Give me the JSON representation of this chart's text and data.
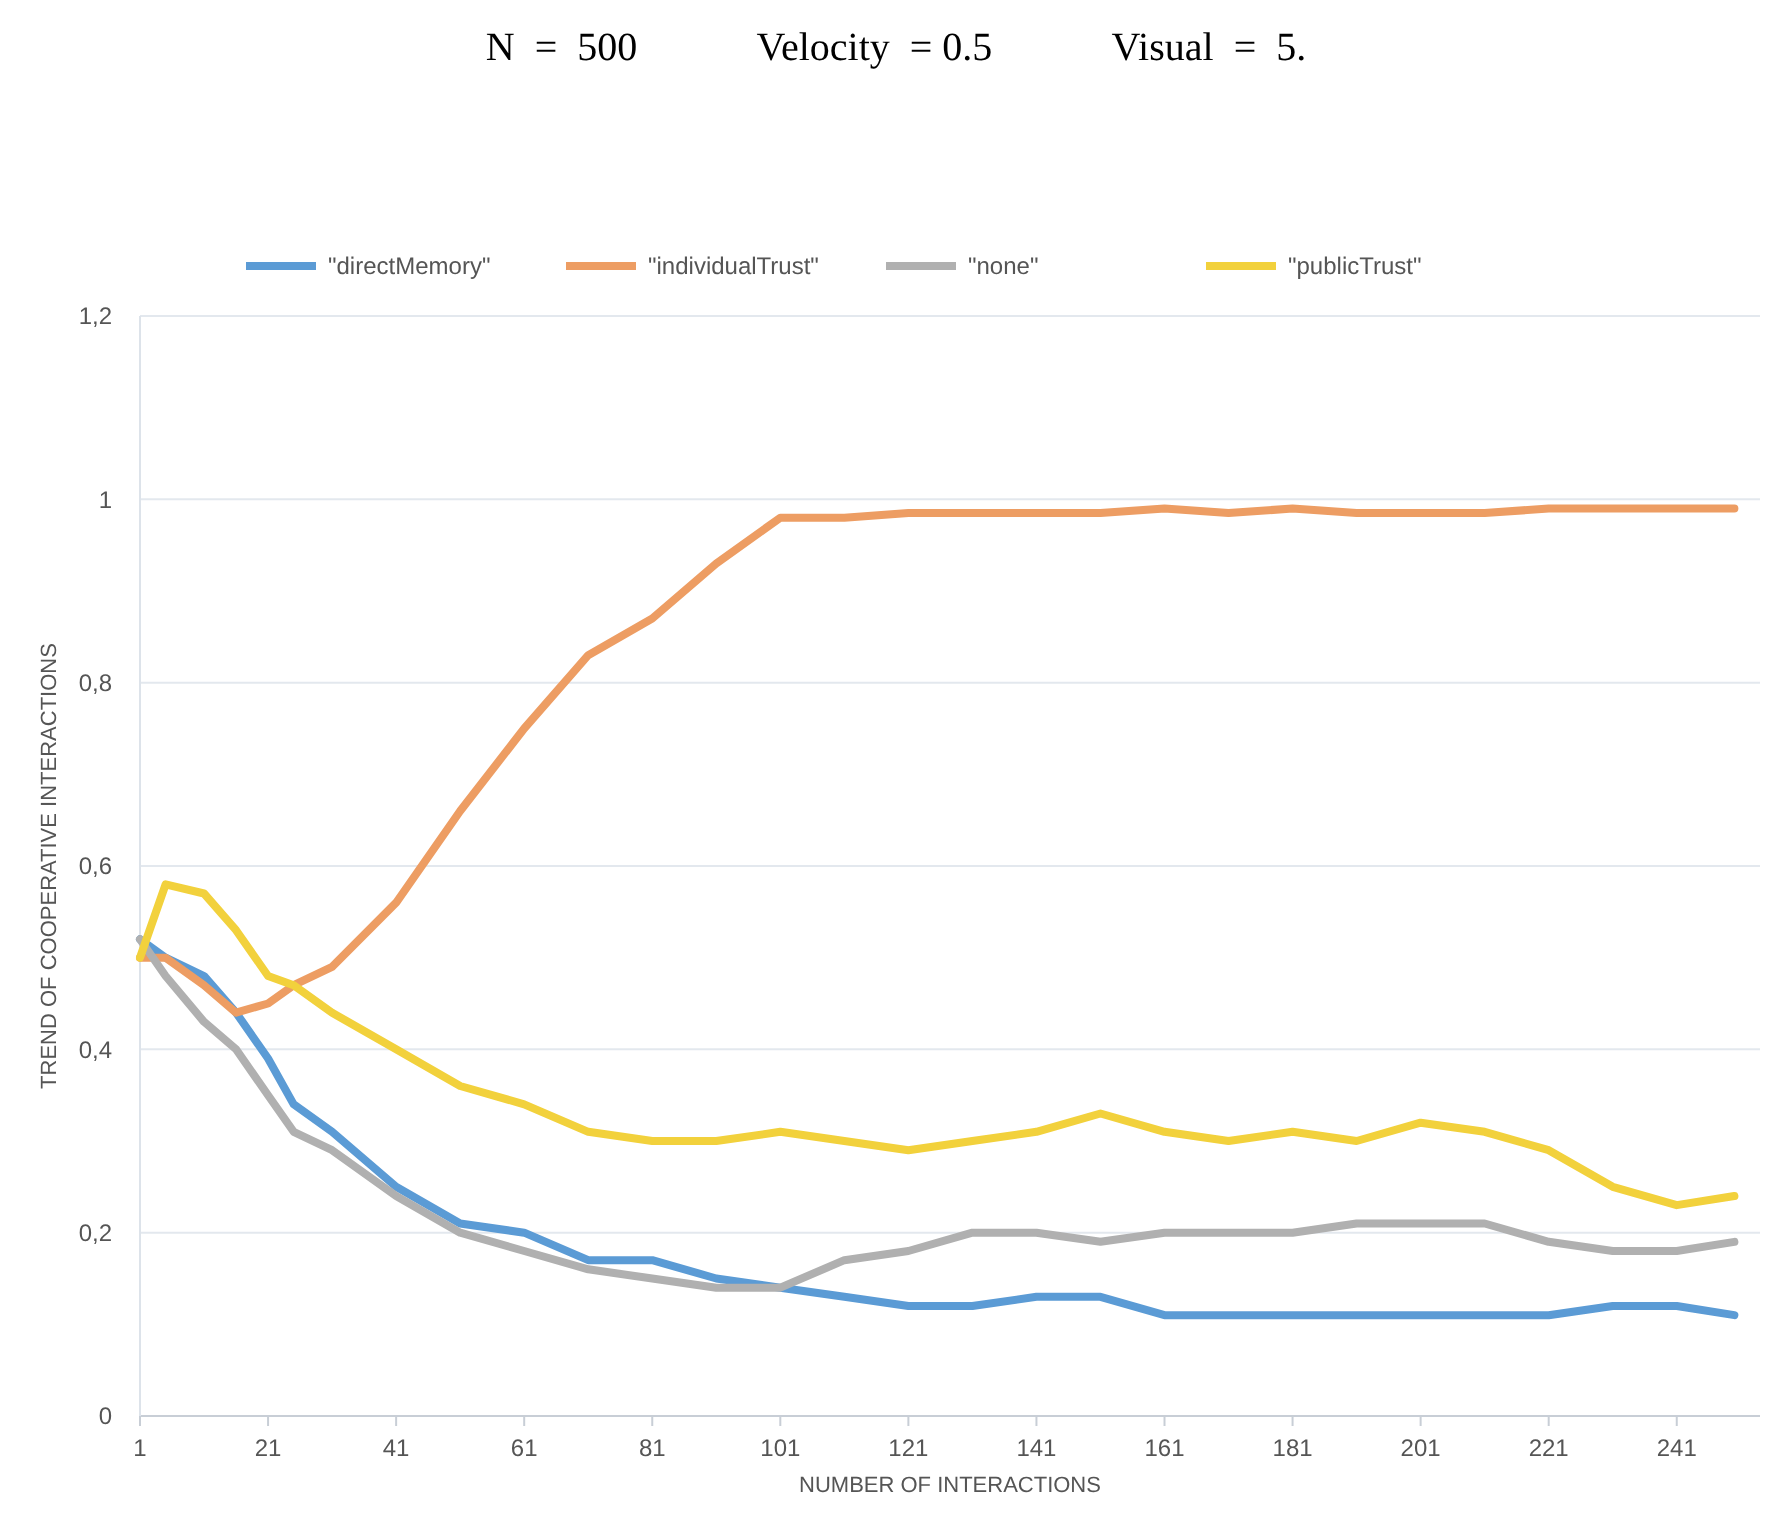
{
  "chart_data": {
    "type": "line",
    "title": "N  =  500            Velocity  = 0.5            Visual  =  5.",
    "xlabel": "NUMBER OF INTERACTIONS",
    "ylabel": "TREND OF COOPERATIVE INTERACTIONS",
    "x": [
      1,
      5,
      11,
      16,
      21,
      25,
      31,
      41,
      51,
      61,
      71,
      81,
      91,
      101,
      111,
      121,
      131,
      141,
      151,
      161,
      171,
      181,
      191,
      201,
      211,
      221,
      231,
      241,
      250
    ],
    "xlim": [
      1,
      254
    ],
    "xticks": [
      1,
      21,
      41,
      61,
      81,
      101,
      121,
      141,
      161,
      181,
      201,
      221,
      241
    ],
    "ylim": [
      0,
      1.2
    ],
    "yticks": [
      0,
      {
        "value": 0.2,
        "label": "0,2"
      },
      {
        "value": 0.4,
        "label": "0,4"
      },
      {
        "value": 0.6,
        "label": "0,6"
      },
      {
        "value": 0.8,
        "label": "0,8"
      },
      1,
      {
        "value": 1.2,
        "label": "1,2"
      }
    ],
    "grid": "y",
    "legend": "top",
    "line_style": "solid",
    "marker": "none",
    "series": [
      {
        "name": "\"directMemory\"",
        "color": "#5b9bd5",
        "values": [
          0.52,
          0.5,
          0.48,
          0.44,
          0.39,
          0.34,
          0.31,
          0.25,
          0.21,
          0.2,
          0.17,
          0.17,
          0.15,
          0.14,
          0.13,
          0.12,
          0.12,
          0.13,
          0.13,
          0.11,
          0.11,
          0.11,
          0.11,
          0.11,
          0.11,
          0.11,
          0.12,
          0.12,
          0.11
        ]
      },
      {
        "name": "\"individualTrust\"",
        "color": "#ed9d63",
        "values": [
          0.5,
          0.5,
          0.47,
          0.44,
          0.45,
          0.47,
          0.49,
          0.56,
          0.66,
          0.75,
          0.83,
          0.87,
          0.93,
          0.98,
          0.98,
          0.985,
          0.985,
          0.985,
          0.985,
          0.99,
          0.985,
          0.99,
          0.985,
          0.985,
          0.985,
          0.99,
          0.99,
          0.99,
          0.99
        ]
      },
      {
        "name": "\"none\"",
        "color": "#b0b0b0",
        "values": [
          0.52,
          0.48,
          0.43,
          0.4,
          0.35,
          0.31,
          0.29,
          0.24,
          0.2,
          0.18,
          0.16,
          0.15,
          0.14,
          0.14,
          0.17,
          0.18,
          0.2,
          0.2,
          0.19,
          0.2,
          0.2,
          0.2,
          0.21,
          0.21,
          0.21,
          0.19,
          0.18,
          0.18,
          0.19
        ]
      },
      {
        "name": "\"publicTrust\"",
        "color": "#f2d13c",
        "values": [
          0.5,
          0.58,
          0.57,
          0.53,
          0.48,
          0.47,
          0.44,
          0.4,
          0.36,
          0.34,
          0.31,
          0.3,
          0.3,
          0.31,
          0.3,
          0.29,
          0.3,
          0.31,
          0.33,
          0.31,
          0.3,
          0.31,
          0.3,
          0.32,
          0.31,
          0.29,
          0.25,
          0.23,
          0.24
        ]
      }
    ]
  }
}
